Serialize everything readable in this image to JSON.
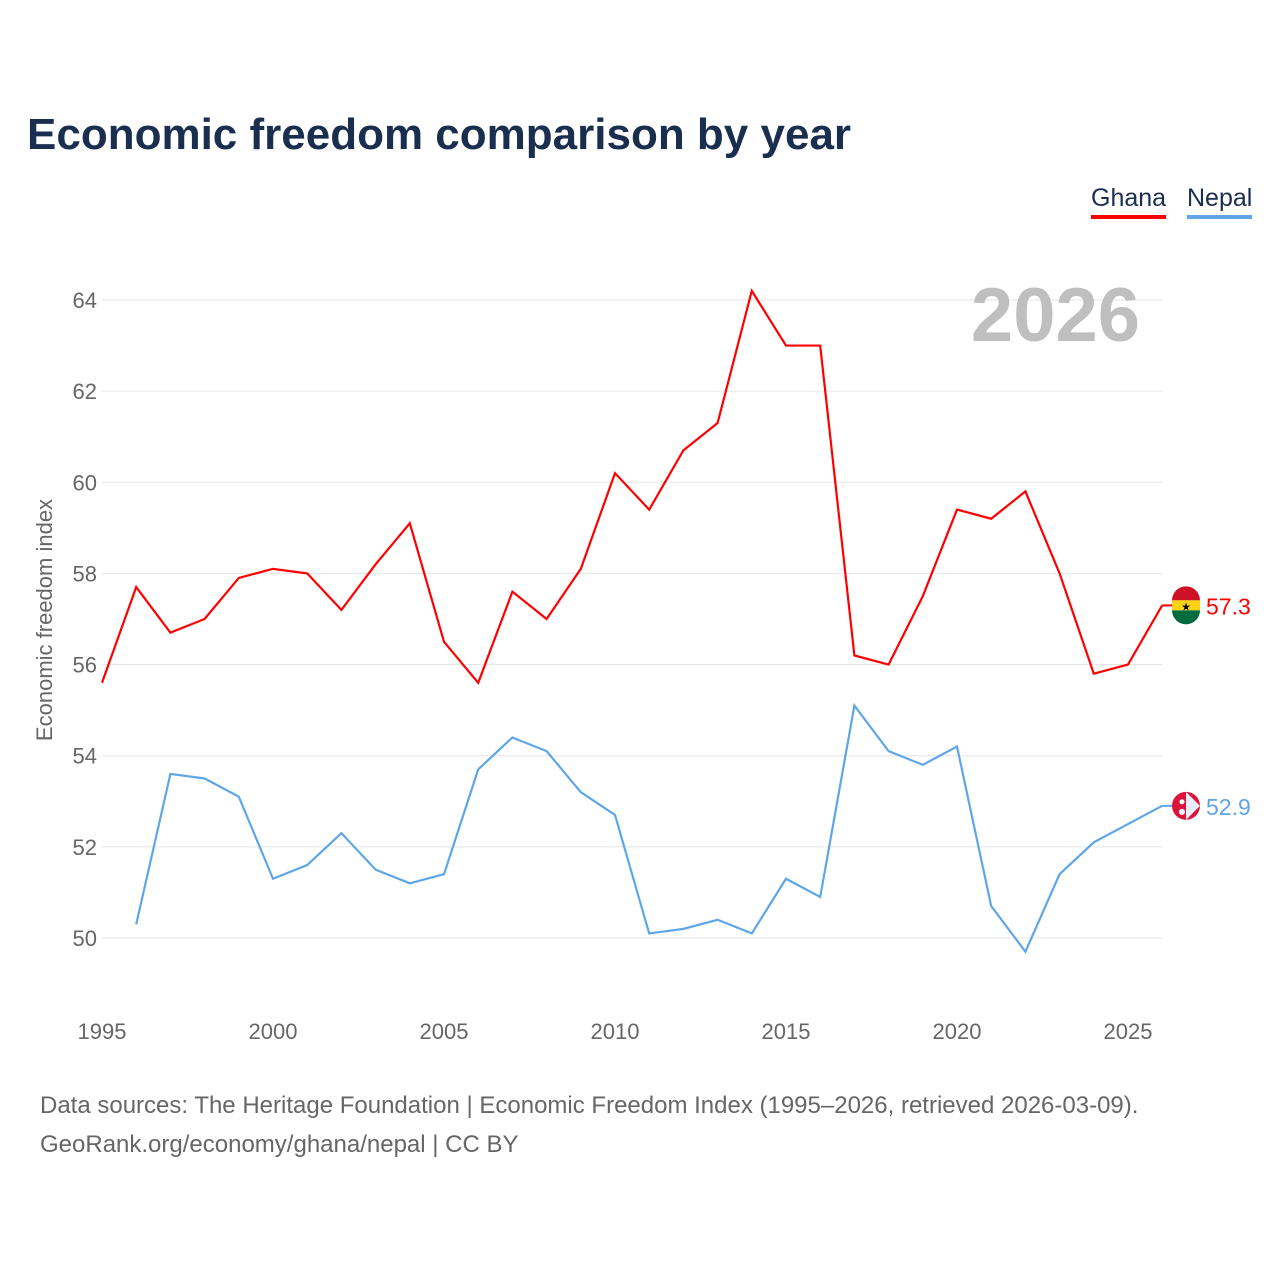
{
  "chart_data": {
    "type": "line",
    "title": "Economic freedom comparison by year",
    "ylabel": "Economic freedom index",
    "xlabel": "",
    "year_watermark": "2026",
    "xlim": [
      1995,
      2026
    ],
    "ylim": [
      48.5,
      64.5
    ],
    "x_ticks": [
      1995,
      2000,
      2005,
      2010,
      2015,
      2020,
      2025
    ],
    "y_ticks": [
      50,
      52,
      54,
      56,
      58,
      60,
      62,
      64
    ],
    "grid": true,
    "legend_position": "top-right",
    "series": [
      {
        "name": "Ghana",
        "color": "#ff0000",
        "end_label": "57.3",
        "x": [
          1995,
          1996,
          1997,
          1998,
          1999,
          2000,
          2001,
          2002,
          2003,
          2004,
          2005,
          2006,
          2007,
          2008,
          2009,
          2010,
          2011,
          2012,
          2013,
          2014,
          2015,
          2016,
          2017,
          2018,
          2019,
          2020,
          2021,
          2022,
          2023,
          2024,
          2025,
          2026
        ],
        "values": [
          55.6,
          57.7,
          56.7,
          57.0,
          57.9,
          58.1,
          58.0,
          57.2,
          58.2,
          59.1,
          56.5,
          55.6,
          57.6,
          57.0,
          58.1,
          60.2,
          59.4,
          60.7,
          61.3,
          64.2,
          63.0,
          63.0,
          56.2,
          56.0,
          57.5,
          59.4,
          59.2,
          59.8,
          58.0,
          55.8,
          56.0,
          57.3
        ]
      },
      {
        "name": "Nepal",
        "color": "#5ea6e8",
        "end_label": "52.9",
        "x": [
          1996,
          1997,
          1998,
          1999,
          2000,
          2001,
          2002,
          2003,
          2004,
          2005,
          2006,
          2007,
          2008,
          2009,
          2010,
          2011,
          2012,
          2013,
          2014,
          2015,
          2016,
          2017,
          2018,
          2019,
          2020,
          2021,
          2022,
          2023,
          2024,
          2025,
          2026
        ],
        "values": [
          50.3,
          53.6,
          53.5,
          53.1,
          51.3,
          51.6,
          52.3,
          51.5,
          51.2,
          51.4,
          53.7,
          54.4,
          54.1,
          53.2,
          52.7,
          50.1,
          50.2,
          50.4,
          50.1,
          51.3,
          50.9,
          55.1,
          54.1,
          53.8,
          54.2,
          50.7,
          49.7,
          51.4,
          52.1,
          52.5,
          52.9
        ]
      }
    ]
  },
  "source": {
    "line1": "Data sources: The Heritage Foundation | Economic Freedom Index (1995–2026, retrieved 2026-03-09).",
    "line2": "GeoRank.org/economy/ghana/nepal | CC BY"
  }
}
